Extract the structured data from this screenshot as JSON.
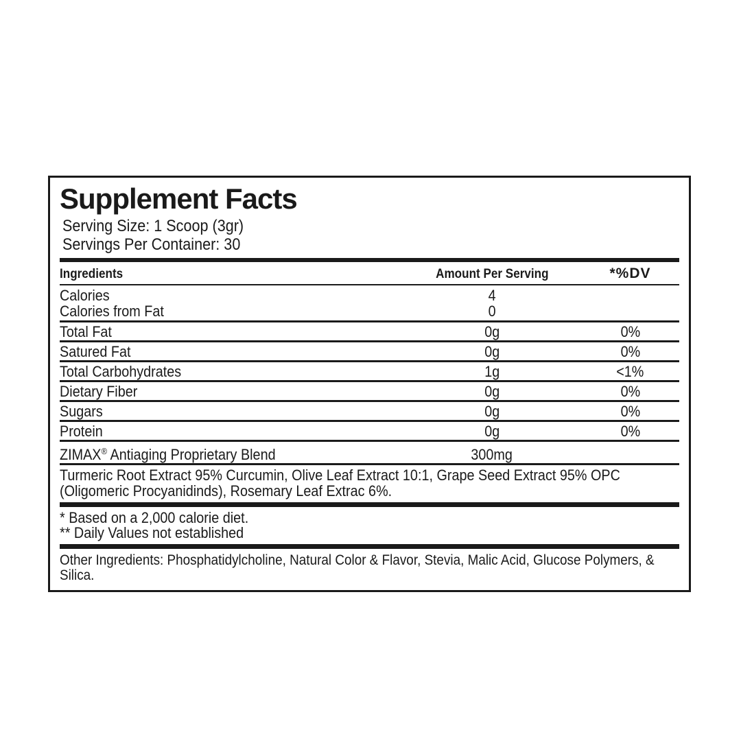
{
  "label": {
    "title": "Supplement Facts",
    "serving_size": "Serving Size: 1 Scoop (3gr)",
    "servings_per_container": "Servings Per Container: 30",
    "columns": {
      "ingredients": "Ingredients",
      "amount": "Amount Per Serving",
      "dv": "*%DV"
    },
    "rows": [
      {
        "name": "Calories",
        "amount": "4",
        "dv": ""
      },
      {
        "name": "Calories from Fat",
        "amount": "0",
        "dv": ""
      },
      {
        "name": "Total Fat",
        "amount": "0g",
        "dv": "0%"
      },
      {
        "name": "Satured Fat",
        "amount": "0g",
        "dv": "0%"
      },
      {
        "name": "Total Carbohydrates",
        "amount": "1g",
        "dv": "<1%"
      },
      {
        "name": "Dietary Fiber",
        "amount": "0g",
        "dv": "0%"
      },
      {
        "name": "Sugars",
        "amount": "0g",
        "dv": "0%"
      },
      {
        "name": "Protein",
        "amount": "0g",
        "dv": "0%"
      }
    ],
    "blend": {
      "brand": "ZIMAX",
      "reg": "®",
      "name_rest": " Antiaging Proprietary Blend",
      "amount": "300mg",
      "description": "Turmeric Root Extract 95% Curcumin, Olive Leaf Extract 10:1, Grape Seed Extract 95% OPC (Oligomeric Procyanidinds), Rosemary Leaf Extrac 6%."
    },
    "footnotes": [
      "* Based on a 2,000 calorie diet.",
      "** Daily Values not established"
    ],
    "other_ingredients": "Other Ingredients: Phosphatidylcholine, Natural Color & Flavor, Stevia, Malic Acid, Glucose Polymers, & Silica.",
    "colors": {
      "ink": "#1a1a1a",
      "background": "#ffffff"
    }
  }
}
